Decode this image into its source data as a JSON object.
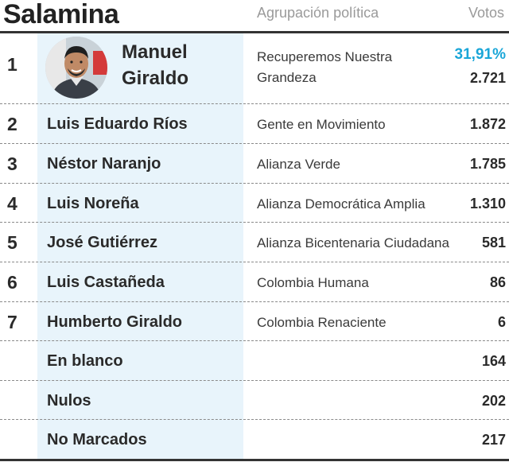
{
  "title": "Salamina",
  "columns": {
    "party": "Agrupación política",
    "votes": "Votos"
  },
  "winner": {
    "rank": "1",
    "name_line1": "Manuel",
    "name_line2": "Giraldo",
    "party_line1": "Recuperemos Nuestra",
    "party_line2": "Grandeza",
    "percent": "31,91%",
    "votes": "2.721"
  },
  "candidates": [
    {
      "rank": "2",
      "name": "Luis Eduardo Ríos",
      "party": "Gente en Movimiento",
      "votes": "1.872"
    },
    {
      "rank": "3",
      "name": "Néstor Naranjo",
      "party": "Alianza Verde",
      "votes": "1.785"
    },
    {
      "rank": "4",
      "name": "Luis Noreña",
      "party": "Alianza Democrática Amplia",
      "votes": "1.310"
    },
    {
      "rank": "5",
      "name": "José Gutiérrez",
      "party": "Alianza Bicentenaria Ciudadana",
      "votes": "581"
    },
    {
      "rank": "6",
      "name": "Luis Castañeda",
      "party": "Colombia Humana",
      "votes": "86"
    },
    {
      "rank": "7",
      "name": "Humberto Giraldo",
      "party": "Colombia Renaciente",
      "votes": "6"
    }
  ],
  "others": [
    {
      "name": "En blanco",
      "votes": "164"
    },
    {
      "name": "Nulos",
      "votes": "202"
    },
    {
      "name": "No Marcados",
      "votes": "217"
    }
  ],
  "colors": {
    "accent": "#1aa6d8",
    "highlight": "#e8f4fb"
  }
}
